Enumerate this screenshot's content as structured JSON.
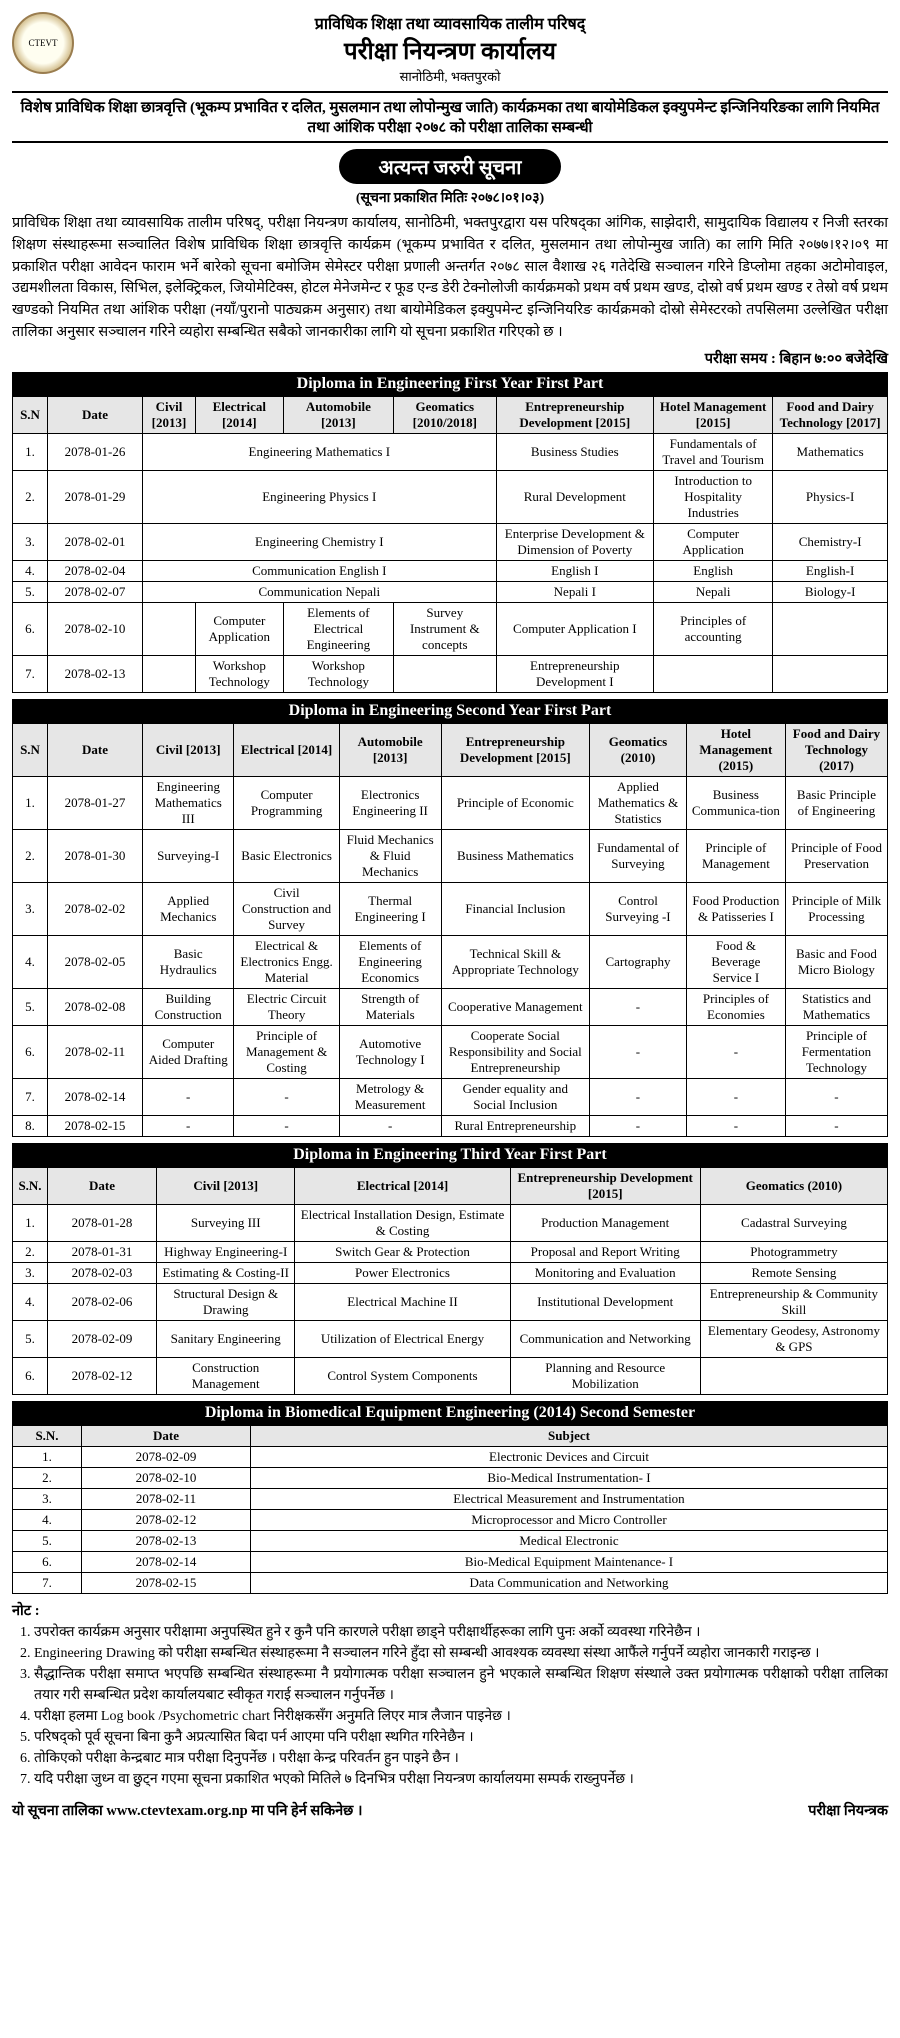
{
  "header": {
    "line1": "प्राविधिक शिक्षा तथा व्यावसायिक तालीम परिषद्",
    "line2": "परीक्षा नियन्त्रण कार्यालय",
    "line3": "सानोठिमी, भक्तपुरको"
  },
  "subhead": "विशेष प्राविधिक शिक्षा छात्रवृत्ति (भूकम्प प्रभावित र दलित, मुसलमान तथा लोपोन्मुख जाति) कार्यक्रमका तथा बायोमेडिकल इक्युपमेन्ट इन्जिनियरिङका लागि नियमित तथा आंशिक परीक्षा २०७८ को परीक्षा तालिका सम्बन्धी",
  "urgent": "अत्यन्त जरुरी सूचना",
  "pubdate": "(सूचना प्रकाशित मितिः २०७८।०१।०३)",
  "intro": "प्राविधिक शिक्षा तथा व्यावसायिक तालीम परिषद्, परीक्षा नियन्त्रण कार्यालय, सानोठिमी, भक्तपुरद्वारा यस परिषद्का आंगिक, साझेदारी, सामुदायिक विद्यालय र निजी स्तरका शिक्षण संस्थाहरूमा सञ्चालित विशेष प्राविधिक शिक्षा छात्रवृत्ति कार्यक्रम (भूकम्प प्रभावित र दलित, मुसलमान तथा लोपोन्मुख जाति) का लागि मिति २०७७।१२।०९ मा प्रकाशित परीक्षा आवेदन फाराम भर्ने बारेको सूचना बमोजिम सेमेस्टर परीक्षा प्रणाली अन्तर्गत २०७८ साल वैशाख २६ गतेदेखि सञ्चालन गरिने डिप्लोमा तहका अटोमोवाइल, उद्यमशीलता विकास, सिभिल, इलेक्ट्रिकल, जियोमेटिक्स, होटल मेनेजमेन्ट र फूड एन्ड डेरी टेक्नोलोजी कार्यक्रमको प्रथम वर्ष प्रथम खण्ड, दोस्रो वर्ष प्रथम खण्ड र तेस्रो वर्ष प्रथम खण्डको नियमित तथा आंशिक परीक्षा (नयाँ/पुरानो पाठ्यक्रम अनुसार) तथा बायोमेडिकल इक्युपमेन्ट इन्जिनियरिङ कार्यक्रमको दोस्रो सेमेस्टरको तपसिलमा उल्लेखित परीक्षा तालिका अनुसार सञ्चालन गरिने व्यहोरा सम्बन्धित सबैको जानकारीका लागि यो सूचना प्रकाशित गरिएको छ ।",
  "exam_time": "परीक्षा समय : बिहान ७:०० बजेदेखि",
  "sec1": {
    "title": "Diploma in Engineering First Year First Part",
    "cols": [
      "S.N",
      "Date",
      "Civil [2013]",
      "Electrical [2014]",
      "Automobile [2013]",
      "Geomatics [2010/2018]",
      "Entrepreneurship Development [2015]",
      "Hotel Management [2015]",
      "Food and Dairy Technology [2017]"
    ],
    "rows": [
      {
        "sn": "1.",
        "date": "2078-01-26",
        "math": "Engineering Mathematics I",
        "ent": "Business Studies",
        "hm": "Fundamentals of Travel and Tourism",
        "fd": "Mathematics"
      },
      {
        "sn": "2.",
        "date": "2078-01-29",
        "math": "Engineering Physics I",
        "ent": "Rural Development",
        "hm": "Introduction to Hospitality Industries",
        "fd": "Physics-I"
      },
      {
        "sn": "3.",
        "date": "2078-02-01",
        "math": "Engineering Chemistry I",
        "ent": "Enterprise Development & Dimension of Poverty",
        "hm": "Computer Application",
        "fd": "Chemistry-I"
      },
      {
        "sn": "4.",
        "date": "2078-02-04",
        "math": "Communication English I",
        "ent": "English I",
        "hm": "English",
        "fd": "English-I"
      },
      {
        "sn": "5.",
        "date": "2078-02-07",
        "math": "Communication Nepali",
        "ent": "Nepali I",
        "hm": "Nepali",
        "fd": "Biology-I"
      },
      {
        "sn": "6.",
        "date": "2078-02-10",
        "civ": "",
        "ele": "Computer Application",
        "auto": "Elements of Electrical Engineering",
        "geo": "Survey Instrument & concepts",
        "ent": "Computer Application I",
        "hm": "Principles of accounting",
        "fd": ""
      },
      {
        "sn": "7.",
        "date": "2078-02-13",
        "civ": "",
        "ele": "Workshop Technology",
        "auto": "Workshop Technology",
        "geo": "",
        "ent": "Entrepreneurship Development I",
        "hm": "",
        "fd": ""
      }
    ]
  },
  "sec2": {
    "title": "Diploma in Engineering Second Year First Part",
    "cols": [
      "S.N",
      "Date",
      "Civil [2013]",
      "Electrical [2014]",
      "Automobile [2013]",
      "Entrepreneurship Development [2015]",
      "Geomatics (2010)",
      "Hotel Management (2015)",
      "Food and Dairy Technology (2017)"
    ],
    "rows": [
      [
        "1.",
        "2078-01-27",
        "Engineering Mathematics III",
        "Computer Programming",
        "Electronics Engineering II",
        "Principle of Economic",
        "Applied Mathematics & Statistics",
        "Business Communica-tion",
        "Basic Principle of Engineering"
      ],
      [
        "2.",
        "2078-01-30",
        "Surveying-I",
        "Basic Electronics",
        "Fluid Mechanics & Fluid Mechanics",
        "Business Mathematics",
        "Fundamental of Surveying",
        "Principle of Management",
        "Principle of Food Preservation"
      ],
      [
        "3.",
        "2078-02-02",
        "Applied Mechanics",
        "Civil Construction and Survey",
        "Thermal Engineering I",
        "Financial Inclusion",
        "Control Surveying -I",
        "Food Production & Patisseries I",
        "Principle of Milk Processing"
      ],
      [
        "4.",
        "2078-02-05",
        "Basic Hydraulics",
        "Electrical & Electronics Engg. Material",
        "Elements of Engineering Economics",
        "Technical Skill & Appropriate Technology",
        "Cartography",
        "Food & Beverage Service I",
        "Basic and Food Micro Biology"
      ],
      [
        "5.",
        "2078-02-08",
        "Building Construction",
        "Electric Circuit Theory",
        "Strength of Materials",
        "Cooperative Management",
        "-",
        "Principles of Economies",
        "Statistics and Mathematics"
      ],
      [
        "6.",
        "2078-02-11",
        "Computer Aided Drafting",
        "Principle of Management & Costing",
        "Automotive Technology I",
        "Cooperate Social Responsibility and Social Entrepreneurship",
        "-",
        "-",
        "Principle of Fermentation Technology"
      ],
      [
        "7.",
        "2078-02-14",
        "-",
        "-",
        "Metrology & Measurement",
        "Gender equality and Social Inclusion",
        "-",
        "-",
        "-"
      ],
      [
        "8.",
        "2078-02-15",
        "-",
        "-",
        "-",
        "Rural Entrepreneurship",
        "-",
        "-",
        "-"
      ]
    ]
  },
  "sec3": {
    "title": "Diploma in Engineering Third Year First Part",
    "cols": [
      "S.N.",
      "Date",
      "Civil [2013]",
      "Electrical [2014]",
      "Entrepreneurship Development [2015]",
      "Geomatics (2010)"
    ],
    "rows": [
      [
        "1.",
        "2078-01-28",
        "Surveying III",
        "Electrical Installation Design, Estimate & Costing",
        "Production Management",
        "Cadastral Surveying"
      ],
      [
        "2.",
        "2078-01-31",
        "Highway Engineering-I",
        "Switch Gear & Protection",
        "Proposal and Report Writing",
        "Photogrammetry"
      ],
      [
        "3.",
        "2078-02-03",
        "Estimating & Costing-II",
        "Power Electronics",
        "Monitoring and Evaluation",
        "Remote Sensing"
      ],
      [
        "4.",
        "2078-02-06",
        "Structural Design & Drawing",
        "Electrical Machine II",
        "Institutional Development",
        "Entrepreneurship & Community Skill"
      ],
      [
        "5.",
        "2078-02-09",
        "Sanitary Engineering",
        "Utilization of Electrical Energy",
        "Communication and Networking",
        "Elementary Geodesy, Astronomy & GPS"
      ],
      [
        "6.",
        "2078-02-12",
        "Construction Management",
        "Control System Components",
        "Planning and Resource Mobilization",
        ""
      ]
    ]
  },
  "sec4": {
    "title": "Diploma in Biomedical Equipment Engineering (2014) Second Semester",
    "cols": [
      "S.N.",
      "Date",
      "Subject"
    ],
    "rows": [
      [
        "1.",
        "2078-02-09",
        "Electronic Devices and Circuit"
      ],
      [
        "2.",
        "2078-02-10",
        "Bio-Medical Instrumentation- I"
      ],
      [
        "3.",
        "2078-02-11",
        "Electrical Measurement and Instrumentation"
      ],
      [
        "4.",
        "2078-02-12",
        "Microprocessor and Micro Controller"
      ],
      [
        "5.",
        "2078-02-13",
        "Medical Electronic"
      ],
      [
        "6.",
        "2078-02-14",
        "Bio-Medical Equipment Maintenance- I"
      ],
      [
        "7.",
        "2078-02-15",
        "Data Communication and Networking"
      ]
    ]
  },
  "notes_head": "नोट :",
  "notes": [
    "उपरोक्त कार्यक्रम अनुसार परीक्षामा अनुपस्थित हुने र कुनै पनि कारणले परीक्षा छाड्ने परीक्षार्थीहरूका लागि पुनः अर्को व्यवस्था गरिनेछैन ।",
    "Engineering Drawing को परीक्षा सम्बन्धित संस्थाहरूमा नै सञ्चालन गरिने हुँदा सो सम्बन्धी आवश्यक व्यवस्था संस्था आफैंले गर्नुपर्ने व्यहोरा जानकारी गराइन्छ ।",
    "सैद्धान्तिक परीक्षा समाप्त भएपछि सम्बन्धित संस्थाहरूमा नै प्रयोगात्मक परीक्षा सञ्चालन हुने भएकाले सम्बन्धित शिक्षण संस्थाले उक्त प्रयोगात्मक परीक्षाको परीक्षा तालिका तयार गरी सम्बन्धित प्रदेश कार्यालयबाट स्वीकृत गराई सञ्चालन गर्नुपर्नेछ ।",
    "परीक्षा हलमा Log book /Psychometric chart निरीक्षकसँग अनुमति लिएर मात्र लैजान पाइनेछ ।",
    "परिषद्‌को पूर्व सूचना बिना कुनै अप्रत्यासित बिदा पर्न आएमा पनि परीक्षा स्थगित गरिनेछैन ।",
    "तोकिएको परीक्षा केन्द्रबाट मात्र परीक्षा दिनुपर्नेछ । परीक्षा केन्द्र परिवर्तन हुन पाइने छैन ।",
    "यदि परीक्षा जुध्न वा छुट्न गएमा सूचना प्रकाशित भएको मितिले ७ दिनभित्र परीक्षा नियन्त्रण कार्यालयमा सम्पर्क राख्नुपर्नेछ ।"
  ],
  "footer_left": "यो सूचना तालिका www.ctevtexam.org.np मा पनि हेर्न सकिनेछ ।",
  "footer_right": "परीक्षा नियन्त्रक"
}
